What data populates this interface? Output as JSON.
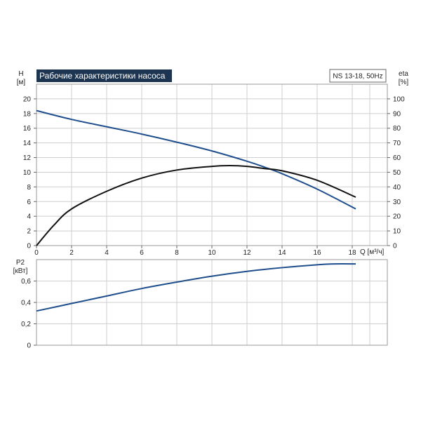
{
  "chart_data": [
    {
      "type": "line",
      "title": "Рабочие характеристики насоса",
      "model": "NS 13-18, 50Hz",
      "y_label_top": "H",
      "y_unit": "[м]",
      "y2_label_top": "eta",
      "y2_unit": "[%]",
      "x_label": "Q [м³/ч]",
      "xlim": [
        0,
        20
      ],
      "ylim": [
        0,
        22
      ],
      "y2lim": [
        0,
        110
      ],
      "x_ticks": [
        "0",
        "2",
        "4",
        "6",
        "8",
        "10",
        "12",
        "14",
        "16",
        "18"
      ],
      "y_ticks": [
        "0",
        "2",
        "4",
        "6",
        "8",
        "10",
        "12",
        "14",
        "16",
        "18",
        "20"
      ],
      "y2_ticks": [
        "0",
        "10",
        "20",
        "30",
        "40",
        "50",
        "60",
        "70",
        "80",
        "90",
        "100"
      ],
      "grid": true,
      "series": [
        {
          "name": "H",
          "axis": "left",
          "color": "#1f4e8c",
          "x": [
            0,
            2,
            4,
            6,
            8,
            10,
            12,
            13,
            14,
            16,
            18.2
          ],
          "y": [
            18.4,
            17.2,
            16.2,
            15.2,
            14.1,
            12.9,
            11.5,
            10.7,
            9.8,
            7.7,
            5.0
          ]
        },
        {
          "name": "eta",
          "axis": "right",
          "color": "#111111",
          "x": [
            0,
            1,
            2,
            4,
            6,
            8,
            10,
            11,
            12,
            13,
            14,
            16,
            18.2
          ],
          "y": [
            0,
            14,
            25,
            37,
            46,
            51.5,
            54,
            54.5,
            54,
            52.5,
            51,
            44.5,
            33
          ]
        }
      ]
    },
    {
      "type": "line",
      "y_label_top": "P2",
      "y_unit": "[кВт]",
      "xlim": [
        0,
        20
      ],
      "ylim": [
        0,
        0.8
      ],
      "y_ticks": [
        "0",
        "0,2",
        "0,4",
        "0,6"
      ],
      "grid": true,
      "series": [
        {
          "name": "P2",
          "axis": "left",
          "color": "#1f4e8c",
          "x": [
            0,
            2,
            4,
            6,
            8,
            10,
            12,
            14,
            16,
            17,
            18.2
          ],
          "y": [
            0.32,
            0.39,
            0.46,
            0.53,
            0.59,
            0.645,
            0.69,
            0.725,
            0.752,
            0.76,
            0.76
          ]
        }
      ]
    }
  ]
}
